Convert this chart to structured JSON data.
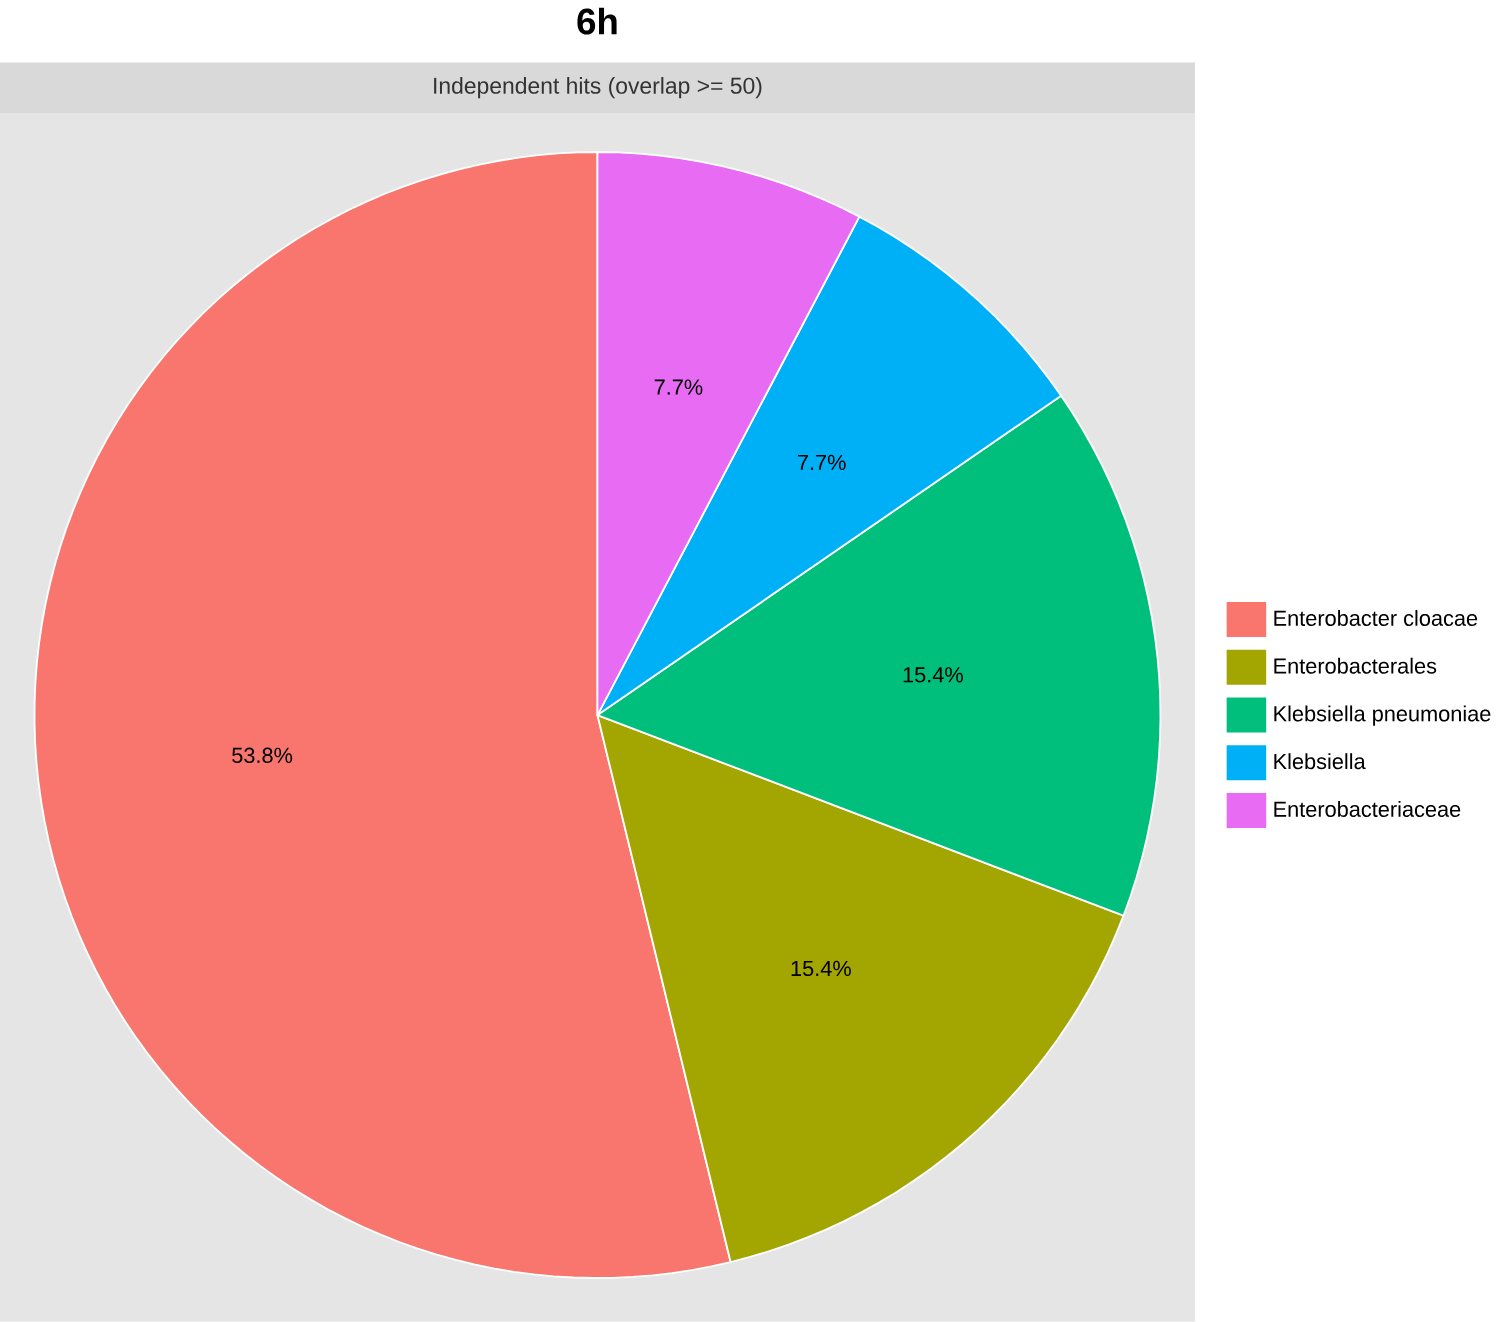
{
  "chart_data": {
    "type": "pie",
    "title": "6h",
    "subtitle": "Independent hits (overlap >= 50)",
    "categories": [
      "Enterobacter cloacae",
      "Enterobacterales",
      "Klebsiella pneumoniae",
      "Klebsiella",
      "Enterobacteriaceae"
    ],
    "values": [
      53.8,
      15.4,
      15.4,
      7.7,
      7.7
    ],
    "colors": [
      "#F8766D",
      "#A3A500",
      "#00BF7D",
      "#00B0F6",
      "#E76BF3"
    ],
    "value_labels": [
      "53.8%",
      "15.4%",
      "15.4%",
      "7.7%",
      "7.7%"
    ],
    "legend": "right"
  }
}
